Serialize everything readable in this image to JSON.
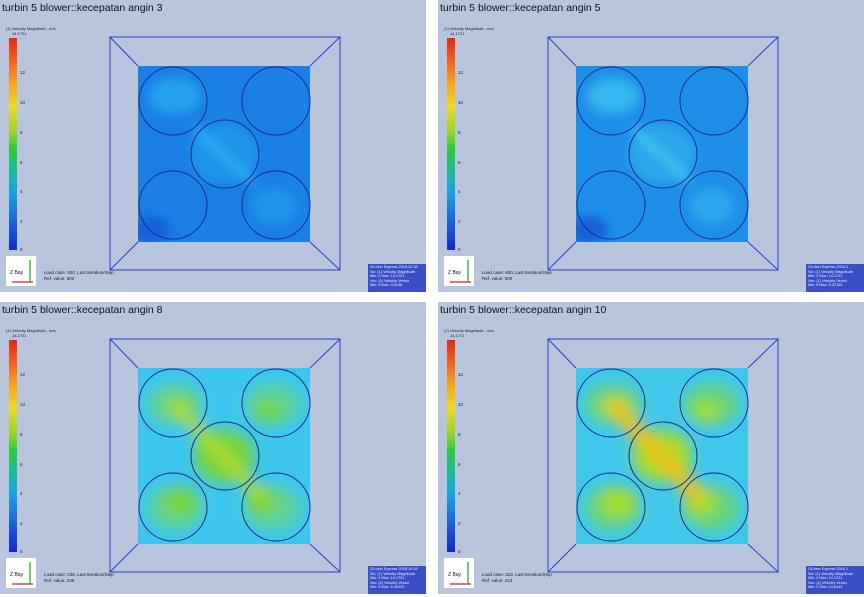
{
  "panels": [
    {
      "title": "turbin 5 blower::kecepatan angin 3",
      "legend_caption": [
        "(1) Velocity Magnitude - m/s",
        "14.1721"
      ],
      "ticks": [
        "12",
        "10",
        "8",
        "6",
        "4",
        "2",
        "0"
      ],
      "triad_label": "Z Bay",
      "load_case": [
        "Load case: 600, Last Iteration/Step",
        "Ref. value: 600"
      ],
      "info": [
        "GLview Express   2016.10.18",
        "Scl: (1) Velocity Magnitude",
        "Min: 0 Max: 14.1721",
        "Vec: (1) Velocity Vector",
        "Min: 0 Max: 3.9148"
      ],
      "intensity": 0
    },
    {
      "title": "turbin 5 blower::kecepatan angin 5",
      "legend_caption": [
        "(1) Velocity Magnitude - m/s",
        "14.1721"
      ],
      "ticks": [
        "12",
        "10",
        "8",
        "6",
        "4",
        "2",
        "0"
      ],
      "triad_label": "Z Bay",
      "load_case": [
        "Load case: 600, Last Iteration/Step",
        "Ref. value: 600"
      ],
      "info": [
        "GLview Express   2016.1",
        "Scl: (1) Velocity Magnitude",
        "Min: 0 Max: 14.1721",
        "Vec: (1) Velocity Vector",
        "Min: 0 Max: 5.47136"
      ],
      "intensity": 1
    },
    {
      "title": "turbin 5 blower::kecepatan angin 8",
      "legend_caption": [
        "(1) Velocity Magnitude - m/s",
        "14.1721"
      ],
      "ticks": [
        "12",
        "10",
        "8",
        "6",
        "4",
        "2",
        "0"
      ],
      "triad_label": "Z Bay",
      "load_case": [
        "Load case: 236, Last Iteration/Step",
        "Ref. value: 236"
      ],
      "info": [
        "GLview Express   2016.10.18",
        "Scl: (1) Velocity Magnitude",
        "Min: 0 Max: 14.1721",
        "Vec: (1) Velocity Vector",
        "Min: 0 Max: 8.49233"
      ],
      "intensity": 2
    },
    {
      "title": "turbin 5 blower::kecepatan angin 10",
      "legend_caption": [
        "(1) Velocity Magnitude - m/s",
        "14.1721"
      ],
      "ticks": [
        "12",
        "10",
        "8",
        "6",
        "4",
        "2",
        "0"
      ],
      "triad_label": "Z Bay",
      "load_case": [
        "Load case: 223, Last Iteration/Step",
        "Ref. value: 223"
      ],
      "info": [
        "GLview Express   2016.1",
        "Scl: (1) Velocity Magnitude",
        "Min: 0 Max: 14.1721",
        "Vec: (1) Velocity Vector",
        "Min: 0 Max: 13.6443"
      ],
      "intensity": 3
    }
  ],
  "colors": {
    "panel_bg": "#b8c5dc",
    "wireframe": "#2a3fc4",
    "info_bg": "#3a4fc7"
  }
}
